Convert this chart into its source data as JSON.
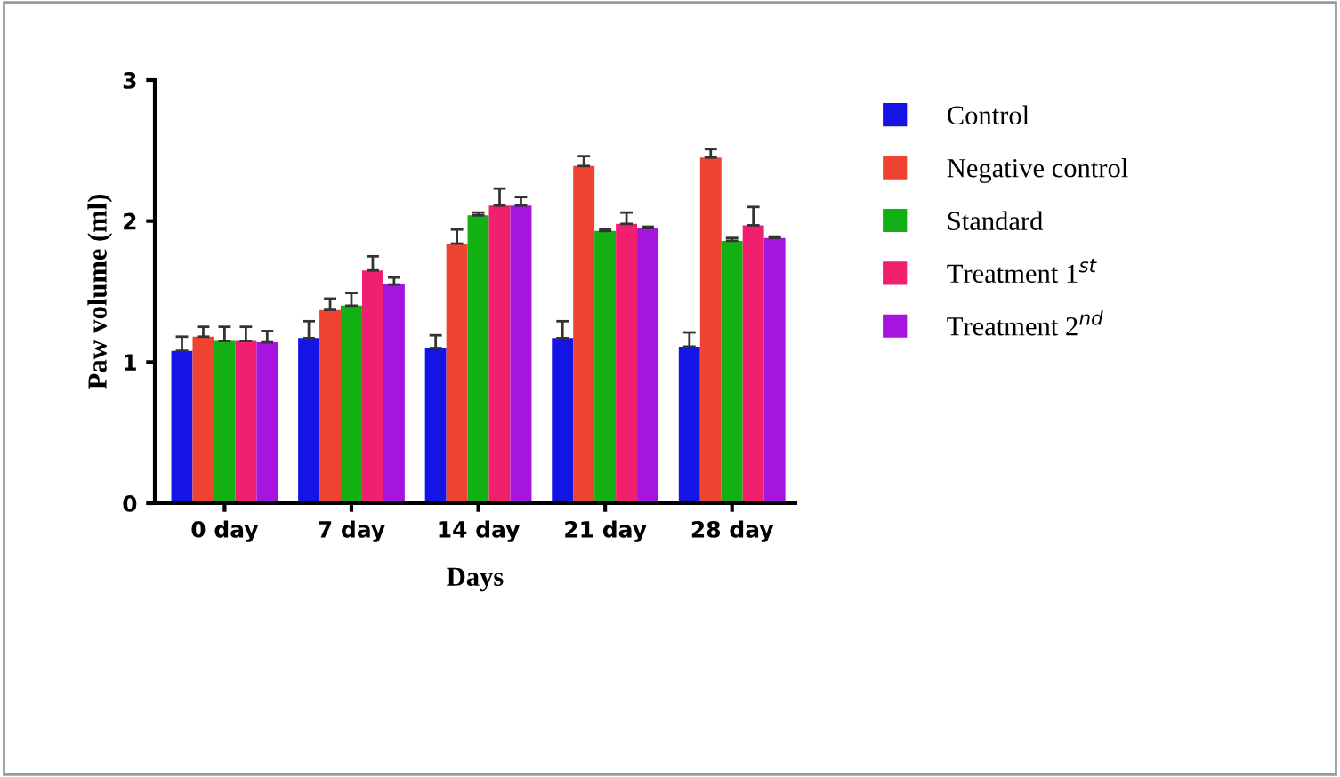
{
  "chart_data": {
    "type": "bar",
    "xlabel": "Days",
    "ylabel": "Paw volume (ml)",
    "categories": [
      "0 day",
      "7 day",
      "14 day",
      "21 day",
      "28 day"
    ],
    "series": [
      {
        "name": "Control",
        "color": "#1414e6",
        "values": [
          1.08,
          1.17,
          1.1,
          1.17,
          1.11
        ],
        "errors": [
          0.1,
          0.12,
          0.09,
          0.12,
          0.1
        ]
      },
      {
        "name": "Negative control",
        "color": "#f04432",
        "values": [
          1.18,
          1.37,
          1.84,
          2.39,
          2.45
        ],
        "errors": [
          0.07,
          0.08,
          0.1,
          0.07,
          0.06
        ]
      },
      {
        "name": "Standard",
        "color": "#12b012",
        "values": [
          1.15,
          1.4,
          2.04,
          1.93,
          1.86
        ],
        "errors": [
          0.1,
          0.09,
          0.02,
          0.01,
          0.02
        ]
      },
      {
        "name": "Treatment 1$^{st}$",
        "color": "#f0206e",
        "values": [
          1.15,
          1.65,
          2.11,
          1.98,
          1.97
        ],
        "errors": [
          0.1,
          0.1,
          0.12,
          0.08,
          0.13
        ]
      },
      {
        "name": "Treatment 2$^{nd}$",
        "color": "#a614e0",
        "values": [
          1.14,
          1.55,
          2.11,
          1.95,
          1.88
        ],
        "errors": [
          0.08,
          0.05,
          0.06,
          0.01,
          0.01
        ]
      }
    ],
    "ylim": [
      0,
      3
    ],
    "yticks": [
      0,
      1,
      2,
      3
    ],
    "grid": false,
    "legend": "right"
  }
}
